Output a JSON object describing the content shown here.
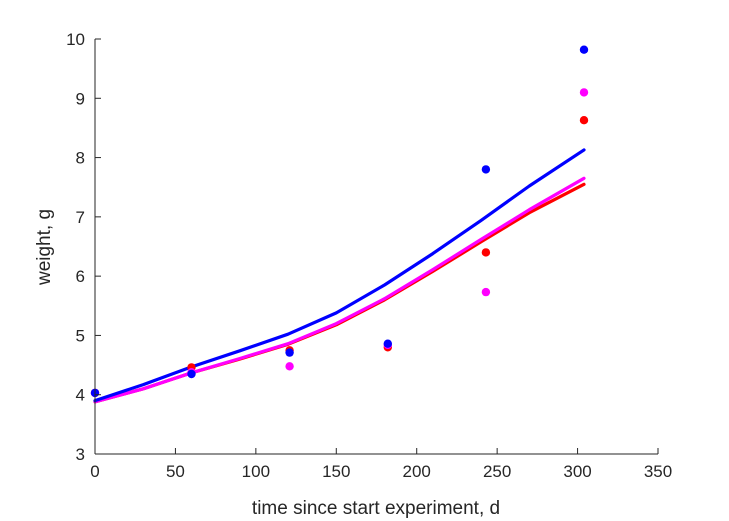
{
  "chart_data": {
    "type": "scatter",
    "xlabel": "time since start experiment, d",
    "ylabel": "weight, g",
    "xlim": [
      0,
      350
    ],
    "ylim": [
      3,
      10
    ],
    "xticks": [
      "0",
      "50",
      "100",
      "150",
      "200",
      "250",
      "300",
      "350"
    ],
    "yticks": [
      "3",
      "4",
      "5",
      "6",
      "7",
      "8",
      "9",
      "10"
    ],
    "grid": false,
    "legend": "none",
    "series": [
      {
        "color": "#ff0000",
        "points": [
          [
            0,
            4.03
          ],
          [
            60,
            4.46
          ],
          [
            121,
            4.75
          ],
          [
            182,
            4.8
          ],
          [
            243,
            6.4
          ],
          [
            304,
            8.63
          ]
        ],
        "curve": [
          [
            0,
            3.88
          ],
          [
            30,
            4.1
          ],
          [
            60,
            4.37
          ],
          [
            90,
            4.6
          ],
          [
            120,
            4.85
          ],
          [
            150,
            5.18
          ],
          [
            180,
            5.6
          ],
          [
            210,
            6.08
          ],
          [
            240,
            6.58
          ],
          [
            270,
            7.07
          ],
          [
            304,
            7.55
          ]
        ]
      },
      {
        "color": "#ff00ff",
        "points": [
          [
            0,
            4.03
          ],
          [
            60,
            4.38
          ],
          [
            121,
            4.48
          ],
          [
            182,
            4.84
          ],
          [
            243,
            5.73
          ],
          [
            304,
            9.1
          ]
        ],
        "curve": [
          [
            0,
            3.88
          ],
          [
            30,
            4.1
          ],
          [
            60,
            4.37
          ],
          [
            90,
            4.61
          ],
          [
            120,
            4.86
          ],
          [
            150,
            5.2
          ],
          [
            180,
            5.62
          ],
          [
            210,
            6.11
          ],
          [
            240,
            6.62
          ],
          [
            270,
            7.12
          ],
          [
            304,
            7.65
          ]
        ]
      },
      {
        "color": "#0000ff",
        "points": [
          [
            0,
            4.03
          ],
          [
            60,
            4.35
          ],
          [
            121,
            4.71
          ],
          [
            182,
            4.86
          ],
          [
            243,
            7.8
          ],
          [
            304,
            9.82
          ]
        ],
        "curve": [
          [
            0,
            3.9
          ],
          [
            30,
            4.17
          ],
          [
            60,
            4.47
          ],
          [
            90,
            4.74
          ],
          [
            120,
            5.02
          ],
          [
            150,
            5.38
          ],
          [
            180,
            5.85
          ],
          [
            210,
            6.38
          ],
          [
            240,
            6.94
          ],
          [
            270,
            7.52
          ],
          [
            304,
            8.13
          ]
        ]
      }
    ]
  }
}
